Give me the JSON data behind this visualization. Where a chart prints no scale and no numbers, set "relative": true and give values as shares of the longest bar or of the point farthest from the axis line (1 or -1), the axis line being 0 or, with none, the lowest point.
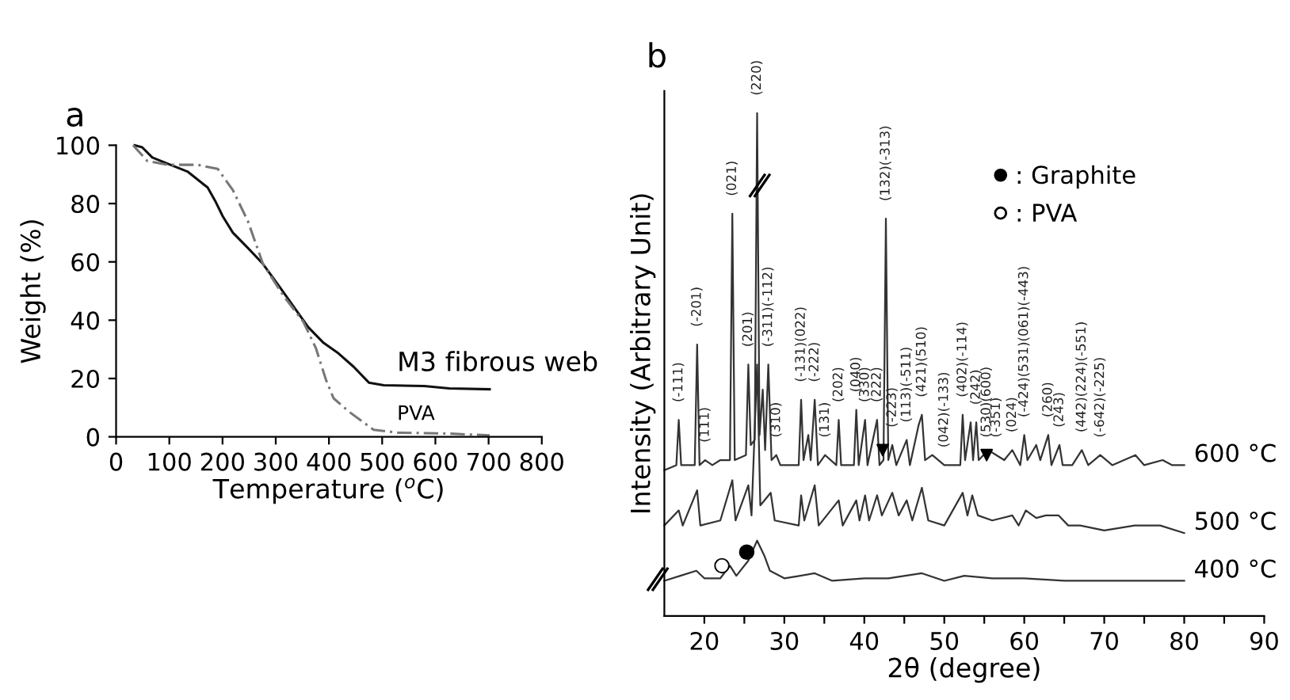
{
  "chart_data": [
    {
      "type": "line",
      "title": "a",
      "xlabel": "Temperature ($^{o}$C)",
      "ylabel": "Weight (%)",
      "xlim": [
        0,
        800
      ],
      "xticks": [
        0,
        100,
        200,
        300,
        400,
        500,
        600,
        700,
        800
      ],
      "ylim": [
        0,
        100
      ],
      "yticks": [
        0,
        20,
        40,
        60,
        80,
        100
      ],
      "legend": false,
      "series": [
        {
          "name": "M3 fibrous web",
          "color": "#111111",
          "line_style": "solid",
          "x": [
            35,
            49,
            68,
            96.5,
            134,
            172,
            186,
            200.5,
            219.5,
            248,
            276,
            305,
            333,
            361,
            390,
            418,
            446.5,
            475,
            503,
            579,
            626,
            702
          ],
          "values": [
            100,
            99.3,
            95.8,
            93.7,
            91,
            85.5,
            81,
            75.6,
            70,
            64.7,
            59.3,
            52,
            44.8,
            37.6,
            32.2,
            28.6,
            24,
            18.6,
            17.7,
            17.4,
            16.6,
            16.3
          ]
        },
        {
          "name": "PVA",
          "color": "#777777",
          "line_style": "dashed",
          "x": [
            32,
            58.6,
            96.5,
            153,
            191,
            219.5,
            248,
            276,
            314,
            352,
            375.5,
            394.5,
            408.7,
            437,
            484,
            531.6,
            626,
            702
          ],
          "values": [
            100,
            94.6,
            93.3,
            93.3,
            91.9,
            84.6,
            73.8,
            59.3,
            48.5,
            39.4,
            30.4,
            19.5,
            13.2,
            8.7,
            2.4,
            1.4,
            1.1,
            0.5
          ]
        }
      ]
    },
    {
      "type": "line",
      "title": "b",
      "xlabel": "2θ (degree)",
      "ylabel": "Intensity (Arbitrary Unit)",
      "relative": true,
      "tick_labels": "x",
      "xlim": [
        15,
        90
      ],
      "xticks": [
        20,
        {
          "value": 25,
          "label": null
        },
        30,
        {
          "value": 35,
          "label": null
        },
        40,
        {
          "value": 45,
          "label": null
        },
        50,
        {
          "value": 55,
          "label": null
        },
        60,
        {
          "value": 65,
          "label": null
        },
        70,
        {
          "value": 75,
          "label": null
        },
        80,
        {
          "value": 85,
          "label": null
        },
        90
      ],
      "legend": "top right",
      "series": [
        {
          "name": "600 °C",
          "color": "#333333",
          "x": [
            15,
            16.5,
            16.8,
            17.1,
            18.8,
            19.1,
            19.4,
            20.1,
            21,
            22,
            23.2,
            23.5,
            23.8,
            25.2,
            25.5,
            25.8,
            26.3,
            26.6,
            26.9,
            27.3,
            27.6,
            28.0,
            28.4,
            29.0,
            29.5,
            31.8,
            32.1,
            32.4,
            33.0,
            33.3,
            33.8,
            34.2,
            35.1,
            36.5,
            36.8,
            37.1,
            38.7,
            39.0,
            39.3,
            40.1,
            40.4,
            41.6,
            41.9,
            42.4,
            42.7,
            43.0,
            43.5,
            44.0,
            45.3,
            45.7,
            46.8,
            47.2,
            47.6,
            48.5,
            50,
            52.0,
            52.3,
            52.6,
            53.3,
            53.6,
            54.0,
            54.3,
            55.5,
            56.5,
            57.5,
            58.5,
            59.5,
            60.0,
            60.4,
            61.5,
            62,
            63.0,
            63.4,
            64.4,
            64.8,
            66,
            67.2,
            68,
            69.5,
            71,
            73.9,
            75,
            77.3,
            78.5,
            80
          ],
          "values": [
            0.29,
            0.3,
            0.39,
            0.3,
            0.3,
            0.54,
            0.3,
            0.31,
            0.3,
            0.31,
            0.31,
            0.8,
            0.31,
            0.32,
            0.5,
            0.34,
            0.35,
            1.0,
            0.36,
            0.45,
            0.33,
            0.5,
            0.31,
            0.32,
            0.3,
            0.3,
            0.43,
            0.31,
            0.36,
            0.31,
            0.43,
            0.3,
            0.32,
            0.3,
            0.39,
            0.3,
            0.3,
            0.41,
            0.3,
            0.39,
            0.3,
            0.39,
            0.3,
            0.31,
            0.79,
            0.31,
            0.34,
            0.3,
            0.35,
            0.3,
            0.38,
            0.4,
            0.31,
            0.32,
            0.3,
            0.3,
            0.4,
            0.31,
            0.385,
            0.31,
            0.385,
            0.31,
            0.33,
            0.32,
            0.31,
            0.33,
            0.3,
            0.36,
            0.31,
            0.34,
            0.31,
            0.36,
            0.3,
            0.34,
            0.3,
            0.3,
            0.33,
            0.3,
            0.32,
            0.3,
            0.32,
            0.3,
            0.31,
            0.3,
            0.3
          ]
        },
        {
          "name": "500 °C",
          "color": "#333333",
          "x": [
            15,
            16.8,
            17.3,
            19.1,
            19.5,
            22,
            23.5,
            23.9,
            25.5,
            25.9,
            26.6,
            27.0,
            28.3,
            28.8,
            31.8,
            32.1,
            32.5,
            33.8,
            34.3,
            36.8,
            37.3,
            39.0,
            39.4,
            40.1,
            40.6,
            41.6,
            42.2,
            43.5,
            44.3,
            45.3,
            46.0,
            47.2,
            48.0,
            50,
            52.3,
            52.9,
            53.5,
            54.2,
            56,
            58.5,
            59.3,
            60.2,
            61.5,
            62.7,
            64.3,
            65.5,
            67,
            70,
            73.8,
            77,
            80
          ],
          "values": [
            0.18,
            0.21,
            0.18,
            0.25,
            0.18,
            0.19,
            0.27,
            0.19,
            0.26,
            0.2,
            0.5,
            0.22,
            0.245,
            0.19,
            0.18,
            0.24,
            0.19,
            0.26,
            0.18,
            0.23,
            0.18,
            0.23,
            0.19,
            0.24,
            0.19,
            0.24,
            0.2,
            0.245,
            0.2,
            0.23,
            0.19,
            0.255,
            0.19,
            0.18,
            0.245,
            0.2,
            0.24,
            0.2,
            0.19,
            0.2,
            0.18,
            0.21,
            0.195,
            0.2,
            0.2,
            0.18,
            0.18,
            0.17,
            0.18,
            0.18,
            0.165
          ]
        },
        {
          "name": "400 °C",
          "color": "#333333",
          "x": [
            15,
            17,
            19,
            20,
            22,
            23.2,
            24,
            25.5,
            26.6,
            27.5,
            28.2,
            30,
            32,
            33.8,
            36,
            40,
            43,
            47.2,
            50,
            52.5,
            56,
            60,
            65,
            70,
            75,
            80
          ],
          "values": [
            0.07,
            0.08,
            0.09,
            0.075,
            0.075,
            0.1,
            0.08,
            0.11,
            0.15,
            0.12,
            0.09,
            0.075,
            0.08,
            0.085,
            0.07,
            0.075,
            0.075,
            0.085,
            0.07,
            0.08,
            0.075,
            0.075,
            0.07,
            0.07,
            0.07,
            0.07
          ]
        },
        {
          "type": "scatter",
          "marker": "triangle",
          "color": "#000000",
          "x": [
            42.3,
            55.3
          ],
          "values": [
            0.33,
            0.32
          ]
        },
        {
          "type": "scatter",
          "marker": "circle",
          "name": ": Graphite",
          "color": "#000000",
          "x": [
            25.3
          ],
          "values": [
            0.127
          ]
        },
        {
          "type": "scatter",
          "marker": "circle",
          "name": ": PVA",
          "color": "#ffffff",
          "x": [
            22.2
          ],
          "values": [
            0.1
          ]
        }
      ],
      "annotations": [
        {
          "text": "(-111)",
          "x": 16.8,
          "y": 0.39
        },
        {
          "text": "(-201)",
          "x": 19.1,
          "y": 0.54
        },
        {
          "text": "(111)",
          "x": 20.1,
          "y": 0.31
        },
        {
          "text": "(021)",
          "x": 23.5,
          "y": 0.8
        },
        {
          "text": "(201)",
          "x": 25.5,
          "y": 0.5
        },
        {
          "text": "(220)",
          "x": 26.6,
          "y": 1.0
        },
        {
          "text": "(-311)(-112)",
          "x": 28.0,
          "y": 0.5
        },
        {
          "text": "(310)",
          "x": 29.0,
          "y": 0.32
        },
        {
          "text": "(-131)(022)",
          "x": 32.1,
          "y": 0.43
        },
        {
          "text": "(-222)",
          "x": 33.8,
          "y": 0.43
        },
        {
          "text": "(131)",
          "x": 35.1,
          "y": 0.32
        },
        {
          "text": "(202)",
          "x": 36.8,
          "y": 0.39
        },
        {
          "text": "(040)",
          "x": 39.0,
          "y": 0.41
        },
        {
          "text": "(330)",
          "x": 40.1,
          "y": 0.39
        },
        {
          "text": "(222)",
          "x": 41.6,
          "y": 0.39
        },
        {
          "text": "(132)(-313)",
          "x": 42.7,
          "y": 0.79
        },
        {
          "text": "(-223)",
          "x": 43.5,
          "y": 0.34
        },
        {
          "text": "(113)(-511)",
          "x": 45.3,
          "y": 0.35
        },
        {
          "text": "(421)(510)",
          "x": 47.2,
          "y": 0.4
        },
        {
          "text": "(042)(-133)",
          "x": 50,
          "y": 0.3
        },
        {
          "text": "(402)(-114)",
          "x": 52.3,
          "y": 0.4
        },
        {
          "text": "(242)",
          "x": 54.0,
          "y": 0.385
        },
        {
          "text": "(530)(600)",
          "x": 55.3,
          "y": 0.32
        },
        {
          "text": "(-351)",
          "x": 56.5,
          "y": 0.32
        },
        {
          "text": "(024)",
          "x": 58.5,
          "y": 0.33
        },
        {
          "text": "(-424)(531)(061)(-443)",
          "x": 60.0,
          "y": 0.36
        },
        {
          "text": "(260)",
          "x": 63.0,
          "y": 0.36
        },
        {
          "text": "(243)",
          "x": 64.4,
          "y": 0.34
        },
        {
          "text": "(442)(224)(-551)",
          "x": 67.2,
          "y": 0.33
        },
        {
          "text": "(-642)(-225)",
          "x": 69.5,
          "y": 0.32
        }
      ]
    }
  ]
}
